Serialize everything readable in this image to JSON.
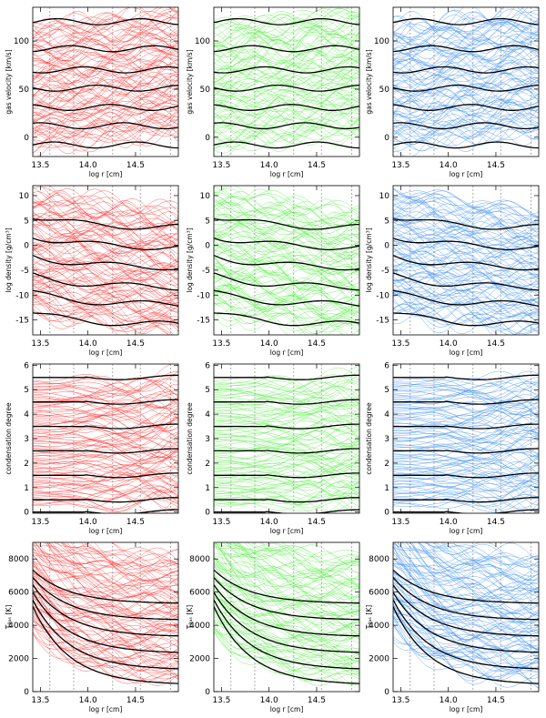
{
  "figure": {
    "rows": 4,
    "cols": 3
  },
  "chart_data": [
    {
      "type": "line",
      "row": 0,
      "col": 0,
      "color": "#ff3030",
      "title": "",
      "xlabel": "log r [cm]",
      "ylabel": "gas velocity [km/s]",
      "xlim": [
        13.42,
        14.95
      ],
      "ylim": [
        -20,
        135
      ],
      "xticks": [
        "13.5",
        "14.0",
        "14.5"
      ],
      "yticks": [
        "0",
        "50",
        "100"
      ],
      "dashed_x": [
        13.6,
        13.85,
        14.26,
        14.55,
        14.87
      ],
      "series": [
        {
          "name": "black curves",
          "color": "#000000",
          "values": [
            -8,
            12,
            31,
            51,
            70,
            92,
            120
          ]
        }
      ]
    },
    {
      "type": "line",
      "row": 0,
      "col": 1,
      "color": "#55ee44",
      "title": "",
      "xlabel": "log r [cm]",
      "ylabel": "gas velocity [km/s]",
      "xlim": [
        13.42,
        14.95
      ],
      "ylim": [
        -20,
        135
      ],
      "xticks": [
        "13.5",
        "14.0",
        "14.5"
      ],
      "yticks": [
        "0",
        "50",
        "100"
      ],
      "dashed_x": [
        13.6,
        13.85,
        14.26,
        14.55,
        14.87
      ],
      "series": [
        {
          "name": "black curves",
          "color": "#000000",
          "values": [
            -8,
            12,
            31,
            51,
            70,
            92,
            120
          ]
        }
      ]
    },
    {
      "type": "line",
      "row": 0,
      "col": 2,
      "color": "#3a8cf0",
      "title": "",
      "xlabel": "log r [cm]",
      "ylabel": "gas velocity [km/s]",
      "xlim": [
        13.42,
        14.95
      ],
      "ylim": [
        -20,
        135
      ],
      "xticks": [
        "13.5",
        "14.0",
        "14.5"
      ],
      "yticks": [
        "0",
        "50",
        "100"
      ],
      "dashed_x": [
        13.6,
        13.85,
        14.26,
        14.55,
        14.87
      ],
      "series": [
        {
          "name": "black curves",
          "color": "#000000",
          "values": [
            -8,
            12,
            31,
            51,
            70,
            92,
            120
          ]
        }
      ]
    },
    {
      "type": "line",
      "row": 1,
      "col": 0,
      "color": "#ff3030",
      "title": "",
      "xlabel": "log r [cm]",
      "ylabel": "log density [g/cm³]",
      "xlim": [
        13.42,
        14.95
      ],
      "ylim": [
        -18,
        12
      ],
      "xticks": [
        "13.5",
        "14.0",
        "14.5"
      ],
      "yticks": [
        "-15",
        "-10",
        "-5",
        "0",
        "5",
        "10"
      ],
      "dashed_x": [
        13.6,
        13.85,
        14.26,
        14.55,
        14.87
      ],
      "series": [
        {
          "name": "black curves",
          "color": "#000000",
          "values": [
            -16,
            -12,
            -8.5,
            -4.5,
            -0.5,
            3.5
          ]
        }
      ]
    },
    {
      "type": "line",
      "row": 1,
      "col": 1,
      "color": "#55ee44",
      "title": "",
      "xlabel": "log r [cm]",
      "ylabel": "log density [g/cm³]",
      "xlim": [
        13.42,
        14.95
      ],
      "ylim": [
        -18,
        12
      ],
      "xticks": [
        "13.5",
        "14.0",
        "14.5"
      ],
      "yticks": [
        "-15",
        "-10",
        "-5",
        "0",
        "5",
        "10"
      ],
      "dashed_x": [
        13.6,
        13.85,
        14.26,
        14.55,
        14.87
      ],
      "series": [
        {
          "name": "black curves",
          "color": "#000000",
          "values": [
            -16,
            -12,
            -8.5,
            -4.5,
            -0.5,
            3.5
          ]
        }
      ]
    },
    {
      "type": "line",
      "row": 1,
      "col": 2,
      "color": "#3a8cf0",
      "title": "",
      "xlabel": "log r [cm]",
      "ylabel": "log density [g/cm³]",
      "xlim": [
        13.42,
        14.95
      ],
      "ylim": [
        -18,
        12
      ],
      "xticks": [
        "13.5",
        "14.0",
        "14.5"
      ],
      "yticks": [
        "-15",
        "-10",
        "-5",
        "0",
        "5",
        "10"
      ],
      "dashed_x": [
        13.6,
        13.85,
        14.26,
        14.55,
        14.87
      ],
      "series": [
        {
          "name": "black curves",
          "color": "#000000",
          "values": [
            -16,
            -12,
            -8.5,
            -4.5,
            -0.5,
            3.5
          ]
        }
      ]
    },
    {
      "type": "line",
      "row": 2,
      "col": 0,
      "color": "#ff3030",
      "title": "",
      "xlabel": "log r [cm]",
      "ylabel": "condensation degree",
      "xlim": [
        13.42,
        14.95
      ],
      "ylim": [
        -0.05,
        6.05
      ],
      "xticks": [
        "13.5",
        "14.0",
        "14.5"
      ],
      "yticks": [
        "0",
        "1",
        "2",
        "3",
        "4",
        "5",
        "6"
      ],
      "dashed_x": [
        13.6,
        13.85,
        14.26,
        14.55,
        14.87
      ],
      "series": [
        {
          "name": "black curves",
          "color": "#000000",
          "values": [
            0,
            0.5,
            1.5,
            2.5,
            3.5,
            4.5,
            5.5
          ]
        }
      ]
    },
    {
      "type": "line",
      "row": 2,
      "col": 1,
      "color": "#55ee44",
      "title": "",
      "xlabel": "log r [cm]",
      "ylabel": "condensation degree",
      "xlim": [
        13.42,
        14.95
      ],
      "ylim": [
        -0.05,
        6.05
      ],
      "xticks": [
        "13.5",
        "14.0",
        "14.5"
      ],
      "yticks": [
        "0",
        "1",
        "2",
        "3",
        "4",
        "5",
        "6"
      ],
      "dashed_x": [
        13.6,
        13.85,
        14.26,
        14.55,
        14.87
      ],
      "series": [
        {
          "name": "black curves",
          "color": "#000000",
          "values": [
            0,
            0.5,
            1.5,
            2.5,
            3.5,
            4.5,
            5.5
          ]
        }
      ]
    },
    {
      "type": "line",
      "row": 2,
      "col": 2,
      "color": "#3a8cf0",
      "title": "",
      "xlabel": "log r [cm]",
      "ylabel": "condensation degree",
      "xlim": [
        13.42,
        14.95
      ],
      "ylim": [
        -0.05,
        6.05
      ],
      "xticks": [
        "13.5",
        "14.0",
        "14.5"
      ],
      "yticks": [
        "0",
        "1",
        "2",
        "3",
        "4",
        "5",
        "6"
      ],
      "dashed_x": [
        13.6,
        13.85,
        14.26,
        14.55,
        14.87
      ],
      "series": [
        {
          "name": "black curves",
          "color": "#000000",
          "values": [
            0,
            0.5,
            1.5,
            2.5,
            3.5,
            4.5,
            5.5
          ]
        }
      ]
    },
    {
      "type": "line",
      "row": 3,
      "col": 0,
      "color": "#ff3030",
      "title": "",
      "xlabel": "log r [cm]",
      "ylabel": "T₉ₐₛ [K]",
      "xlim": [
        13.42,
        14.95
      ],
      "ylim": [
        0,
        9000
      ],
      "xticks": [
        "13.5",
        "14.0",
        "14.5"
      ],
      "yticks": [
        "0",
        "2000",
        "4000",
        "6000",
        "8000"
      ],
      "dashed_x": [
        13.6,
        13.85,
        14.26,
        14.55,
        14.87
      ],
      "series": [
        {
          "name": "black curves",
          "color": "#000000",
          "values": [
            400,
            1300,
            2300,
            3300,
            4300,
            5300
          ]
        }
      ]
    },
    {
      "type": "line",
      "row": 3,
      "col": 1,
      "color": "#55ee44",
      "title": "",
      "xlabel": "log r [cm]",
      "ylabel": "T₉ₐₛ [K]",
      "xlim": [
        13.42,
        14.95
      ],
      "ylim": [
        0,
        9000
      ],
      "xticks": [
        "13.5",
        "14.0",
        "14.5"
      ],
      "yticks": [
        "0",
        "2000",
        "4000",
        "6000",
        "8000"
      ],
      "dashed_x": [
        13.6,
        13.85,
        14.26,
        14.55,
        14.87
      ],
      "series": [
        {
          "name": "black curves",
          "color": "#000000",
          "values": [
            400,
            1300,
            2300,
            3300,
            4300,
            5300
          ]
        }
      ]
    },
    {
      "type": "line",
      "row": 3,
      "col": 2,
      "color": "#3a8cf0",
      "title": "",
      "xlabel": "log r [cm]",
      "ylabel": "T₉ₐₛ [K]",
      "xlim": [
        13.42,
        14.95
      ],
      "ylim": [
        0,
        9000
      ],
      "xticks": [
        "13.5",
        "14.0",
        "14.5"
      ],
      "yticks": [
        "0",
        "2000",
        "4000",
        "6000",
        "8000"
      ],
      "dashed_x": [
        13.6,
        13.85,
        14.26,
        14.55,
        14.87
      ],
      "series": [
        {
          "name": "black curves",
          "color": "#000000",
          "values": [
            400,
            1300,
            2300,
            3300,
            4300,
            5300
          ]
        }
      ]
    }
  ]
}
